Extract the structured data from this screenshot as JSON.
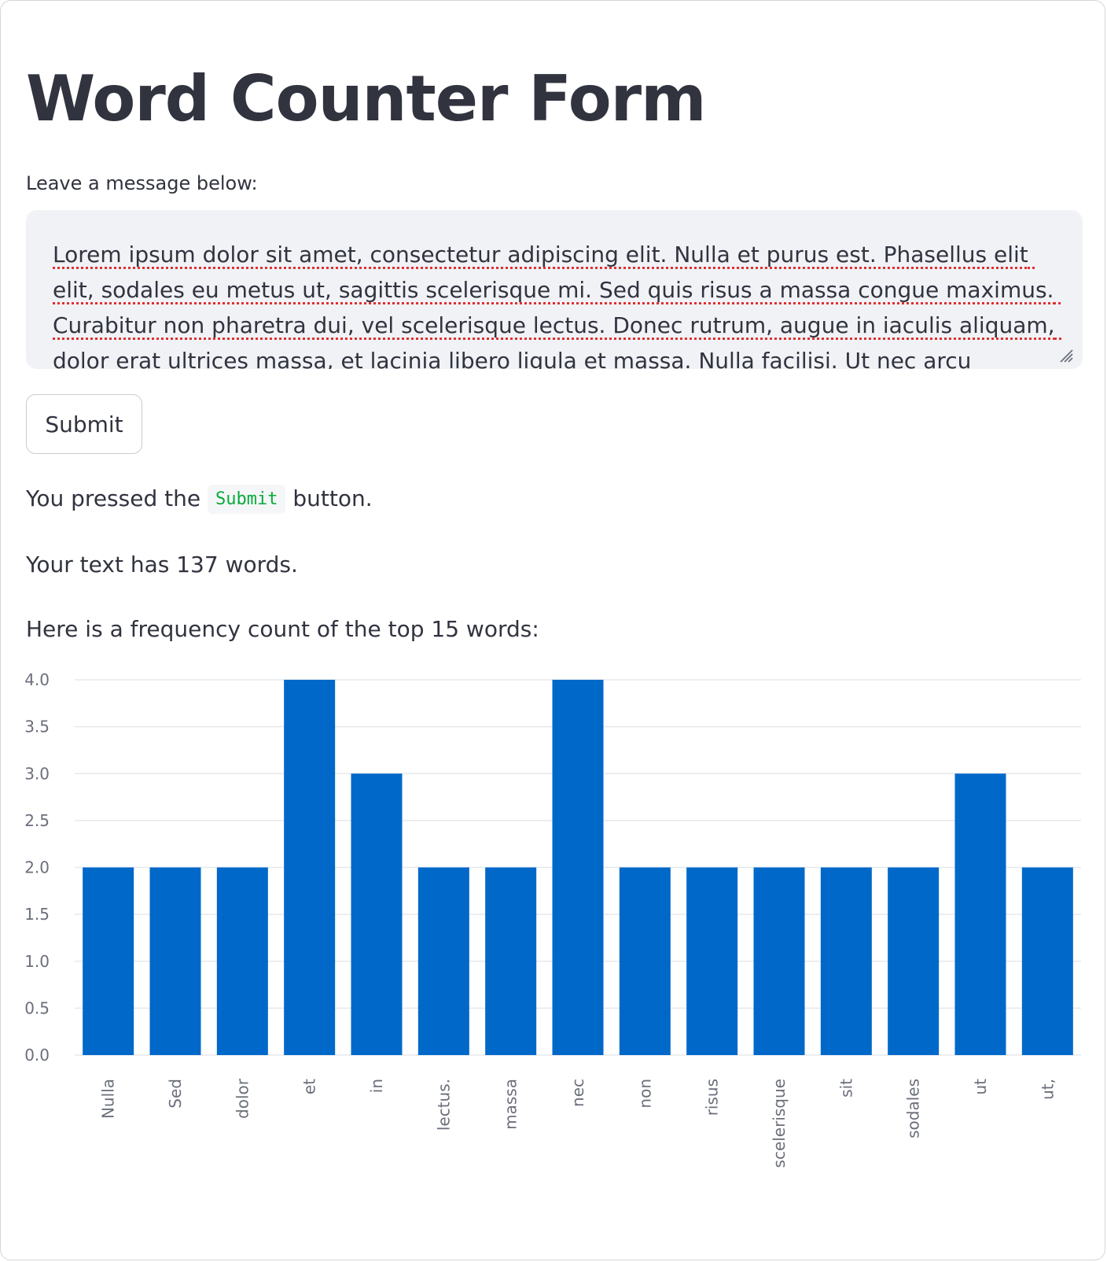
{
  "page": {
    "title": "Word Counter Form"
  },
  "form": {
    "label": "Leave a message below:",
    "message": "Lorem ipsum dolor sit amet, consectetur adipiscing elit. Nulla et purus est. Phasellus elit elit, sodales eu metus ut, sagittis scelerisque mi. Sed quis risus a massa congue maximus. Curabitur non pharetra dui, vel scelerisque lectus. Donec rutrum, augue in iaculis aliquam, dolor erat ultrices massa, et lacinia libero ligula et massa. Nulla facilisi. Ut nec arcu vulputate urna",
    "submit_label": "Submit"
  },
  "result": {
    "pressed_prefix": "You pressed the",
    "pressed_code": "Submit",
    "pressed_suffix": "button.",
    "word_count_text": "Your text has 137 words.",
    "frequency_heading": "Here is a frequency count of the top 15 words:"
  },
  "colors": {
    "bar": "#0068c9",
    "grid": "#e6e8ec",
    "inline_code": "#09ab3b"
  },
  "icons": {
    "resize_handle": "resize-grip-icon"
  },
  "chart_data": {
    "type": "bar",
    "categories": [
      "Nulla",
      "Sed",
      "dolor",
      "et",
      "in",
      "lectus.",
      "massa",
      "nec",
      "non",
      "risus",
      "scelerisque",
      "sit",
      "sodales",
      "ut",
      "ut,"
    ],
    "values": [
      2,
      2,
      2,
      4,
      3,
      2,
      2,
      4,
      2,
      2,
      2,
      2,
      2,
      3,
      2
    ],
    "ylim": [
      0,
      4
    ],
    "yticks": [
      "0.0",
      "0.5",
      "1.0",
      "1.5",
      "2.0",
      "2.5",
      "3.0",
      "3.5",
      "4.0"
    ],
    "title": "",
    "xlabel": "",
    "ylabel": "",
    "grid": true,
    "x_label_rotation": "vertical"
  }
}
